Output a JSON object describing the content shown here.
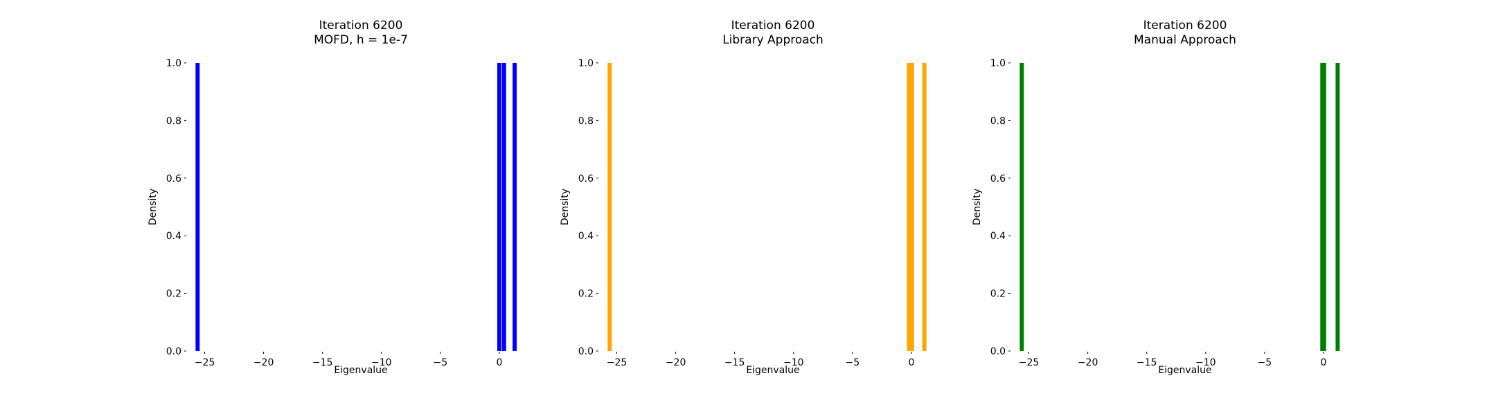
{
  "chart_data": [
    {
      "type": "histogram",
      "title": "Iteration 6200\nMOFD, h = 1e-7",
      "xlabel": "Eigenvalue",
      "ylabel": "Density",
      "xlim": [
        -26.5,
        3.0
      ],
      "ylim": [
        0.0,
        1.0
      ],
      "xticks": [
        -25,
        -20,
        -15,
        -10,
        -5,
        0
      ],
      "xtick_labels": [
        "−25",
        "−20",
        "−15",
        "−10",
        "−5",
        "0"
      ],
      "yticks": [
        0.0,
        0.2,
        0.4,
        0.6,
        0.8,
        1.0
      ],
      "ytick_labels": [
        "0.0",
        "0.2",
        "0.4",
        "0.6",
        "0.8",
        "1.0"
      ],
      "color": "#0000ff",
      "bins": [
        {
          "x": -25.6,
          "density": 1.0
        },
        {
          "x": 0.0,
          "density": 1.0
        },
        {
          "x": 0.4,
          "density": 1.0
        },
        {
          "x": 1.3,
          "density": 1.0
        }
      ]
    },
    {
      "type": "histogram",
      "title": "Iteration 6200\nLibrary Approach",
      "xlabel": "Eigenvalue",
      "ylabel": "Density",
      "xlim": [
        -26.5,
        3.0
      ],
      "ylim": [
        0.0,
        1.0
      ],
      "xticks": [
        -25,
        -20,
        -15,
        -10,
        -5,
        0
      ],
      "xtick_labels": [
        "−25",
        "−20",
        "−15",
        "−10",
        "−5",
        "0"
      ],
      "yticks": [
        0.0,
        0.2,
        0.4,
        0.6,
        0.8,
        1.0
      ],
      "ytick_labels": [
        "0.0",
        "0.2",
        "0.4",
        "0.6",
        "0.8",
        "1.0"
      ],
      "color": "#ffa500",
      "bins": [
        {
          "x": -25.6,
          "density": 1.0
        },
        {
          "x": -0.2,
          "density": 1.0
        },
        {
          "x": -0.05,
          "density": 1.0
        },
        {
          "x": 0.05,
          "density": 1.0
        },
        {
          "x": 1.1,
          "density": 1.0
        }
      ]
    },
    {
      "type": "histogram",
      "title": "Iteration 6200\nManual Approach",
      "xlabel": "Eigenvalue",
      "ylabel": "Density",
      "xlim": [
        -26.5,
        3.0
      ],
      "ylim": [
        0.0,
        1.0
      ],
      "xticks": [
        -25,
        -20,
        -15,
        -10,
        -5,
        0
      ],
      "xtick_labels": [
        "−25",
        "−20",
        "−15",
        "−10",
        "−5",
        "0"
      ],
      "yticks": [
        0.0,
        0.2,
        0.4,
        0.6,
        0.8,
        1.0
      ],
      "ytick_labels": [
        "0.0",
        "0.2",
        "0.4",
        "0.6",
        "0.8",
        "1.0"
      ],
      "color": "#008000",
      "bins": [
        {
          "x": -25.6,
          "density": 1.0
        },
        {
          "x": -0.1,
          "density": 1.0
        },
        {
          "x": 0.05,
          "density": 1.0
        },
        {
          "x": 1.2,
          "density": 1.0
        }
      ]
    }
  ]
}
